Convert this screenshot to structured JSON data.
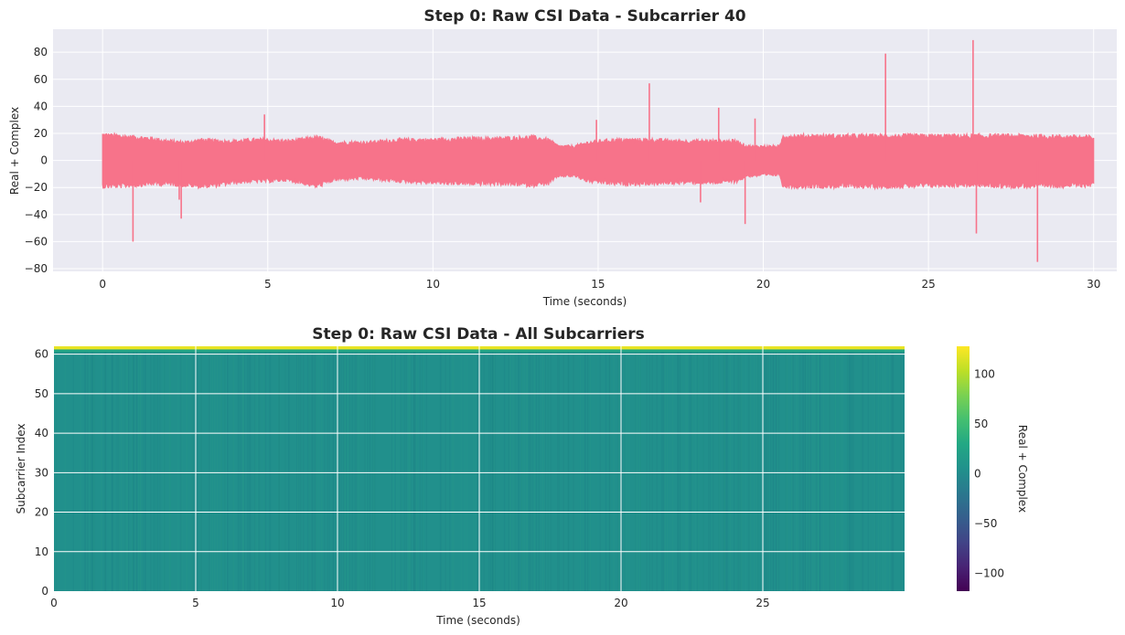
{
  "chart_data": [
    {
      "type": "line",
      "title": "Step 0: Raw CSI Data - Subcarrier 40",
      "xlabel": "Time (seconds)",
      "ylabel": "Real + Complex",
      "xlim": [
        -1.5,
        30.7
      ],
      "ylim": [
        -82,
        97
      ],
      "xticks": [
        0,
        5,
        10,
        15,
        20,
        25,
        30
      ],
      "yticks": [
        -80,
        -60,
        -40,
        -20,
        0,
        20,
        40,
        60,
        80
      ],
      "grid": true,
      "color": "#f7738a",
      "series": [
        {
          "envelope": [
            {
              "t": 0.0,
              "high": 20,
              "low": -20
            },
            {
              "t": 0.5,
              "high": 19,
              "low": -20
            },
            {
              "t": 1.0,
              "high": 18,
              "low": -19
            },
            {
              "t": 1.5,
              "high": 17,
              "low": -18
            },
            {
              "t": 2.0,
              "high": 15,
              "low": -18
            },
            {
              "t": 2.5,
              "high": 14,
              "low": -19
            },
            {
              "t": 3.0,
              "high": 16,
              "low": -20
            },
            {
              "t": 3.5,
              "high": 15,
              "low": -19
            },
            {
              "t": 4.0,
              "high": 15,
              "low": -17
            },
            {
              "t": 4.5,
              "high": 16,
              "low": -16
            },
            {
              "t": 5.0,
              "high": 16,
              "low": -16
            },
            {
              "t": 5.5,
              "high": 15,
              "low": -15
            },
            {
              "t": 6.0,
              "high": 16,
              "low": -17
            },
            {
              "t": 6.5,
              "high": 18,
              "low": -20
            },
            {
              "t": 7.0,
              "high": 14,
              "low": -15
            },
            {
              "t": 7.5,
              "high": 14,
              "low": -14
            },
            {
              "t": 8.0,
              "high": 14,
              "low": -14
            },
            {
              "t": 9.0,
              "high": 16,
              "low": -16
            },
            {
              "t": 10.0,
              "high": 16,
              "low": -17
            },
            {
              "t": 11.0,
              "high": 17,
              "low": -18
            },
            {
              "t": 12.0,
              "high": 17,
              "low": -18
            },
            {
              "t": 13.0,
              "high": 18,
              "low": -19
            },
            {
              "t": 13.5,
              "high": 16,
              "low": -18
            },
            {
              "t": 13.8,
              "high": 11,
              "low": -12
            },
            {
              "t": 14.3,
              "high": 11,
              "low": -12
            },
            {
              "t": 14.7,
              "high": 14,
              "low": -16
            },
            {
              "t": 15.5,
              "high": 16,
              "low": -18
            },
            {
              "t": 16.5,
              "high": 16,
              "low": -18
            },
            {
              "t": 17.5,
              "high": 15,
              "low": -17
            },
            {
              "t": 18.5,
              "high": 15,
              "low": -17
            },
            {
              "t": 19.2,
              "high": 15,
              "low": -16
            },
            {
              "t": 19.5,
              "high": 11,
              "low": -12
            },
            {
              "t": 20.5,
              "high": 11,
              "low": -11
            },
            {
              "t": 20.6,
              "high": 19,
              "low": -20
            },
            {
              "t": 22.0,
              "high": 19,
              "low": -20
            },
            {
              "t": 24.0,
              "high": 19,
              "low": -20
            },
            {
              "t": 26.0,
              "high": 19,
              "low": -19
            },
            {
              "t": 28.0,
              "high": 19,
              "low": -20
            },
            {
              "t": 30.0,
              "high": 18,
              "low": -19
            }
          ],
          "spikes": [
            {
              "t": 0.92,
              "v": -60
            },
            {
              "t": 2.32,
              "v": -29
            },
            {
              "t": 2.38,
              "v": -43
            },
            {
              "t": 4.9,
              "v": 34
            },
            {
              "t": 14.95,
              "v": 30
            },
            {
              "t": 16.55,
              "v": 57
            },
            {
              "t": 18.1,
              "v": -31
            },
            {
              "t": 18.65,
              "v": 39
            },
            {
              "t": 19.45,
              "v": -47
            },
            {
              "t": 19.75,
              "v": 31
            },
            {
              "t": 23.7,
              "v": 79
            },
            {
              "t": 26.35,
              "v": 89
            },
            {
              "t": 26.45,
              "v": -54
            },
            {
              "t": 28.3,
              "v": -75
            }
          ]
        }
      ]
    },
    {
      "type": "heatmap",
      "title": "Step 0: Raw CSI Data - All Subcarriers",
      "xlabel": "Time (seconds)",
      "ylabel": "Subcarrier Index",
      "xlim": [
        0,
        30
      ],
      "ylim": [
        0,
        62
      ],
      "xticks": [
        0,
        5,
        10,
        15,
        20,
        25
      ],
      "yticks": [
        0,
        10,
        20,
        30,
        40,
        50,
        60
      ],
      "grid": true,
      "colormap": "viridis",
      "body_value": 4,
      "top_rows": [
        {
          "from": 60.5,
          "to": 61.2,
          "value": 25
        },
        {
          "from": 61.2,
          "to": 62,
          "value": 120
        }
      ],
      "colorbar": {
        "label": "Real + Complex",
        "min": -118,
        "max": 128,
        "ticks": [
          -100,
          -50,
          0,
          50,
          100
        ],
        "tick_labels": [
          "−100",
          "−50",
          "0",
          "50",
          "100"
        ]
      }
    }
  ]
}
